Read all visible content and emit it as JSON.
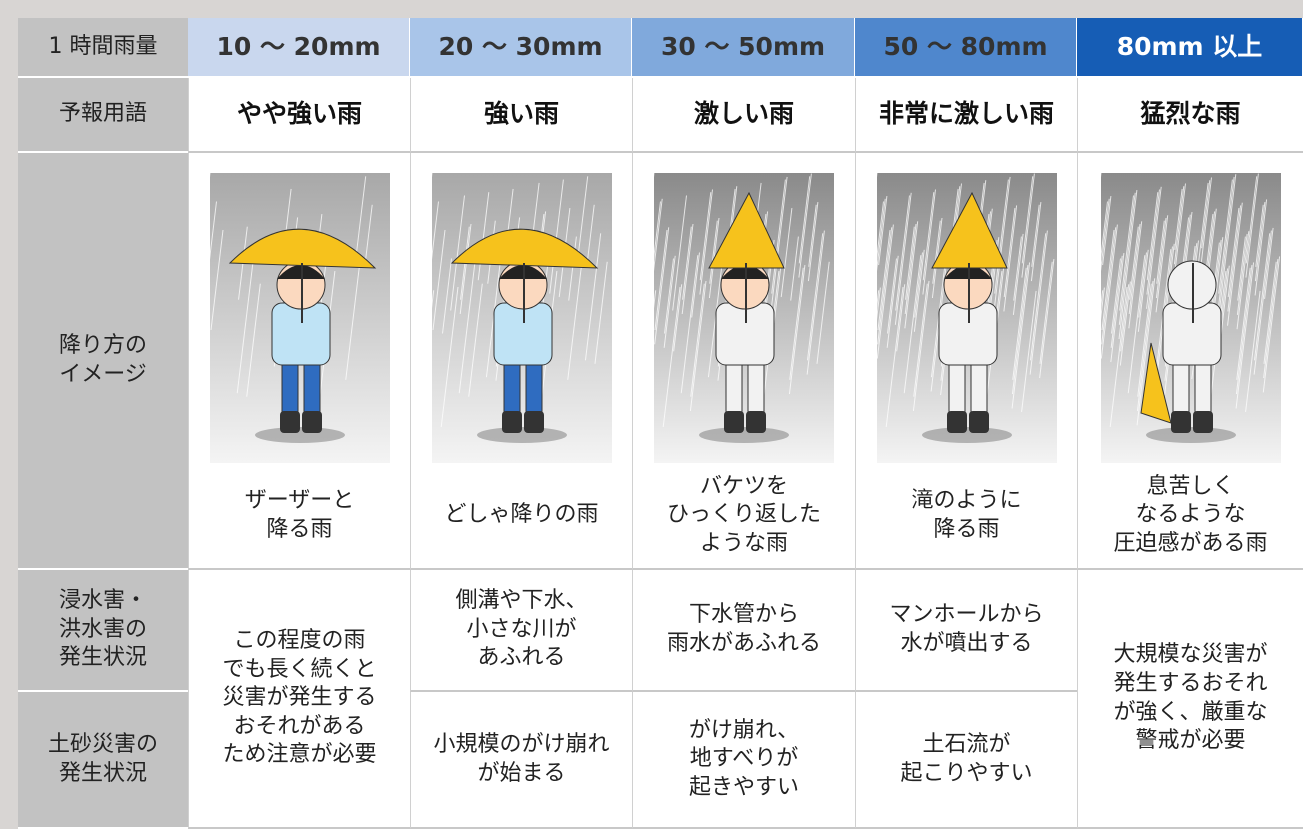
{
  "header": {
    "label": "1 時間雨量"
  },
  "row_labels": {
    "term": "予報用語",
    "image": "降り方の\nイメージ",
    "flood": "浸水害・\n洪水害の\n発生状況",
    "landslide": "土砂災害の\n発生状況"
  },
  "columns": [
    {
      "range": "10 〜 20mm",
      "term": "やや強い雨",
      "description": "ザーザーと\n降る雨",
      "impact": "この程度の雨\nでも長く続くと\n災害が発生する\nおそれがある\nため注意が必要"
    },
    {
      "range": "20 〜 30mm",
      "term": "強い雨",
      "description": "どしゃ降りの雨",
      "flood": "側溝や下水、\n小さな川が\nあふれる",
      "landslide": "小規模のがけ崩れ\nが始まる"
    },
    {
      "range": "30 〜 50mm",
      "term": "激しい雨",
      "description": "バケツを\nひっくり返した\nような雨",
      "flood": "下水管から\n雨水があふれる",
      "landslide": "がけ崩れ、\n地すべりが\n起きやすい"
    },
    {
      "range": "50 〜 80mm",
      "term": "非常に激しい雨",
      "description": "滝のように\n降る雨",
      "flood": "マンホールから\n水が噴出する",
      "landslide": "土石流が\n起こりやすい"
    },
    {
      "range": "80mm 以上",
      "term": "猛烈な雨",
      "description": "息苦しく\nなるような\n圧迫感がある雨",
      "impact": "大規模な災害が\n発生するおそれ\nが強く、厳重な\n警戒が必要"
    }
  ]
}
